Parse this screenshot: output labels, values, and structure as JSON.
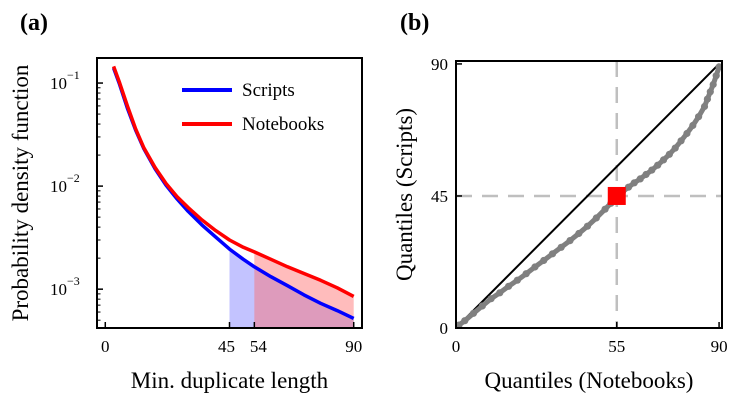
{
  "panel_a_label": "(a)",
  "panel_b_label": "(b)",
  "chart_data": [
    {
      "type": "line",
      "xlabel": "Min. duplicate length",
      "ylabel": "Probability density function",
      "yscale": "log",
      "xlim": [
        -3,
        93
      ],
      "ylim": [
        0.00042,
        0.175
      ],
      "x_ticks": [
        0,
        45,
        54,
        90
      ],
      "x_tick_labels": [
        "0",
        "45",
        "54",
        "90"
      ],
      "y_ticks": [
        0.001,
        0.01,
        0.1
      ],
      "y_tick_labels": [
        "10",
        "10",
        "10"
      ],
      "y_tick_exponents": [
        "−3",
        "−2",
        "−1"
      ],
      "grid": false,
      "legend_position": "top-right",
      "series": [
        {
          "name": "Scripts",
          "color": "#0000ff",
          "x": [
            3,
            5,
            8,
            11,
            14,
            18,
            22,
            26,
            30,
            35,
            40,
            45,
            50,
            54,
            60,
            66,
            72,
            78,
            84,
            90
          ],
          "y": [
            0.14,
            0.1,
            0.057,
            0.035,
            0.023,
            0.0148,
            0.0102,
            0.0075,
            0.0057,
            0.0042,
            0.0032,
            0.00245,
            0.00195,
            0.00165,
            0.00132,
            0.00108,
            0.00088,
            0.00073,
            0.00062,
            0.00052
          ]
        },
        {
          "name": "Notebooks",
          "color": "#ff0000",
          "x": [
            3,
            5,
            8,
            11,
            14,
            18,
            22,
            26,
            30,
            35,
            40,
            45,
            50,
            54,
            60,
            66,
            72,
            78,
            84,
            90
          ],
          "y": [
            0.145,
            0.104,
            0.06,
            0.036,
            0.0235,
            0.0152,
            0.0106,
            0.0079,
            0.0062,
            0.0047,
            0.0037,
            0.003,
            0.00255,
            0.0023,
            0.00195,
            0.00165,
            0.00142,
            0.00122,
            0.00103,
            0.00085
          ]
        }
      ],
      "shaded_regions": [
        {
          "from_x": 45,
          "to_x": 90,
          "series": "Scripts",
          "color": "#7b7bff"
        },
        {
          "from_x": 54,
          "to_x": 90,
          "series": "Notebooks",
          "color": "#ff6b6b"
        }
      ]
    },
    {
      "type": "scatter",
      "xlabel": "Quantiles (Notebooks)",
      "ylabel": "Quantiles (Scripts)",
      "xlim": [
        0,
        91
      ],
      "ylim": [
        0,
        91
      ],
      "x_ticks": [
        0,
        55,
        90
      ],
      "x_tick_labels": [
        "0",
        "55",
        "90"
      ],
      "y_ticks": [
        0,
        45,
        90
      ],
      "y_tick_labels": [
        "0",
        "45",
        "90"
      ],
      "grid": false,
      "qq_points": {
        "color": "#808080",
        "x": [
          1,
          3,
          6,
          9,
          12,
          15,
          18,
          21,
          24,
          27,
          30,
          33,
          36,
          39,
          42,
          45,
          48,
          51,
          53,
          55,
          57,
          59,
          61,
          63,
          65,
          67,
          69,
          71,
          73,
          75,
          77,
          79,
          81,
          83,
          85,
          86,
          87,
          88,
          89,
          90
        ],
        "y": [
          1,
          2.5,
          5,
          7.5,
          10,
          12,
          14.2,
          16.3,
          18.5,
          20.8,
          23,
          25.3,
          27.5,
          29.8,
          32.2,
          34.7,
          37.5,
          40.5,
          42.5,
          44.5,
          46.5,
          48,
          49.5,
          50.8,
          52.3,
          53.8,
          55.5,
          57.3,
          59.2,
          61.3,
          63.8,
          66.3,
          69,
          72,
          75.5,
          78,
          80.5,
          83,
          86,
          89
        ]
      },
      "reference_line": {
        "from": [
          0,
          0
        ],
        "to": [
          90,
          90
        ],
        "color": "#000000"
      },
      "highlight_point": {
        "x": 55,
        "y": 45,
        "color": "#ff0000"
      },
      "crosshair": {
        "x": 55,
        "y": 45,
        "color": "#bfbfbf"
      }
    }
  ]
}
